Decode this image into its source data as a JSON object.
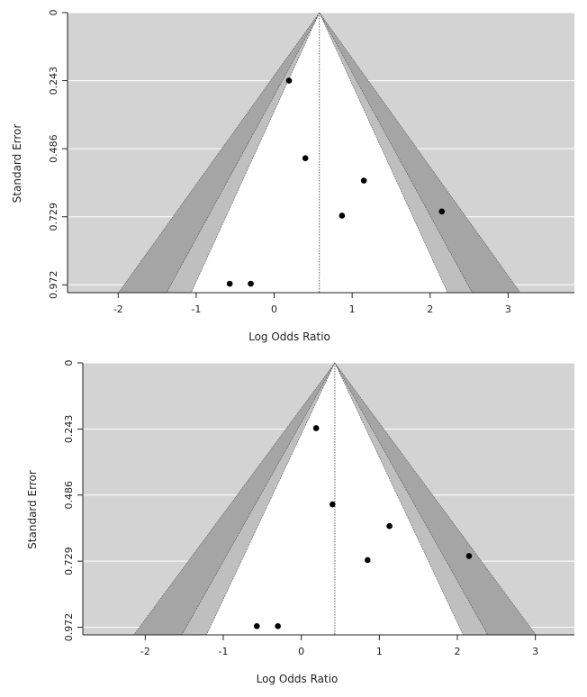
{
  "charts": [
    {
      "chart_data": {
        "type": "scatter",
        "subtype": "contour-enhanced funnel plot",
        "title": "",
        "xlabel": "Log Odds Ratio",
        "ylabel": "Standard Error",
        "xlim": [
          -2.65,
          3.85
        ],
        "ylim": [
          0,
          1.0
        ],
        "y_reversed": true,
        "x_ticks": [
          -2,
          -1,
          0,
          1,
          2,
          3
        ],
        "x_tick_labels": [
          "-2",
          "-1",
          "0",
          "1",
          "2",
          "3"
        ],
        "y_ticks": [
          0,
          0.243,
          0.486,
          0.729,
          0.972
        ],
        "y_tick_labels": [
          "0",
          "0.243",
          "0.486",
          "0.729",
          "0.972"
        ],
        "gridlines": "horizontal",
        "center_estimate": 0.58,
        "contours_z": [
          1.645,
          1.96,
          2.576
        ],
        "points": [
          {
            "x": 0.19,
            "y": 0.243
          },
          {
            "x": 0.4,
            "y": 0.52
          },
          {
            "x": 1.15,
            "y": 0.6
          },
          {
            "x": 0.87,
            "y": 0.725
          },
          {
            "x": 2.15,
            "y": 0.71
          },
          {
            "x": -0.57,
            "y": 0.968
          },
          {
            "x": -0.3,
            "y": 0.968
          }
        ]
      }
    },
    {
      "chart_data": {
        "type": "scatter",
        "subtype": "contour-enhanced funnel plot",
        "title": "",
        "xlabel": "Log Odds Ratio",
        "ylabel": "Standard Error",
        "xlim": [
          -2.8,
          3.5
        ],
        "ylim": [
          0,
          1.0
        ],
        "y_reversed": true,
        "x_ticks": [
          -2,
          -1,
          0,
          1,
          2,
          3
        ],
        "x_tick_labels": [
          "-2",
          "-1",
          "0",
          "1",
          "2",
          "3"
        ],
        "y_ticks": [
          0,
          0.243,
          0.486,
          0.729,
          0.972
        ],
        "y_tick_labels": [
          "0",
          "0.243",
          "0.486",
          "0.729",
          "0.972"
        ],
        "gridlines": "horizontal",
        "center_estimate": 0.43,
        "contours_z": [
          1.645,
          1.96,
          2.576
        ],
        "points": [
          {
            "x": 0.19,
            "y": 0.24
          },
          {
            "x": 0.4,
            "y": 0.52
          },
          {
            "x": 1.13,
            "y": 0.6
          },
          {
            "x": 0.85,
            "y": 0.725
          },
          {
            "x": 2.15,
            "y": 0.71
          },
          {
            "x": -0.57,
            "y": 0.968
          },
          {
            "x": -0.3,
            "y": 0.968
          }
        ]
      }
    }
  ],
  "colors": {
    "background": "#d3d3d3",
    "outer_band": "#a5a5a5",
    "middle_band": "#bfbfbf",
    "inner_region": "#ffffff",
    "gridline": "#ffffff",
    "point": "#000000",
    "axis": "#222222"
  }
}
